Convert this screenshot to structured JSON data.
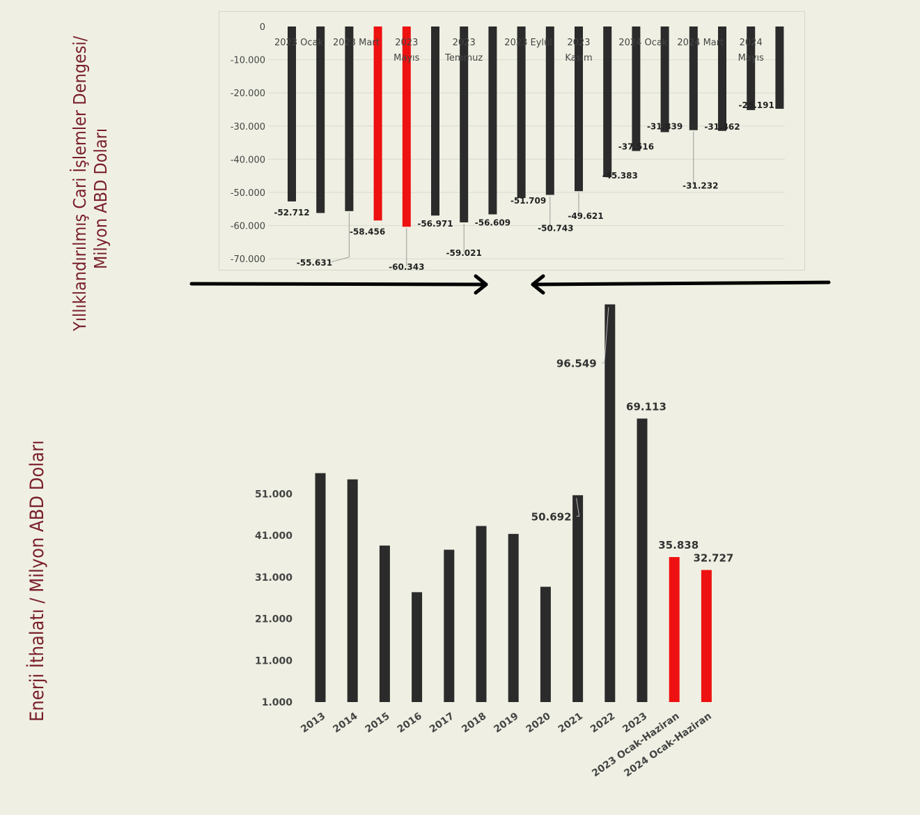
{
  "titles": {
    "top": [
      "Yıllıklandırılmış Cari İşlemler Dengesi/",
      "Milyon ABD Doları"
    ],
    "bottom": "Enerji İthalatı / Milyon ABD Doları"
  },
  "colors": {
    "dark": "#2b2b2b",
    "highlight": "#ee1111",
    "grid": "#d9dacf",
    "axis_text": "#444444"
  },
  "chart_data": [
    {
      "type": "bar",
      "title": "",
      "ylabel": "Yıllıklandırılmış Cari İşlemler Dengesi/ Milyon ABD Doları",
      "ylim": [
        -70000,
        0
      ],
      "y_ticks": [
        "0",
        "-10.000",
        "-20.000",
        "-30.000",
        "-40.000",
        "-50.000",
        "-60.000",
        "-70.000"
      ],
      "x_tick_labels": [
        {
          "text": [
            "2023 Ocak"
          ],
          "index": 0
        },
        {
          "text": [
            "2023 Mart"
          ],
          "index": 2
        },
        {
          "text": [
            "2023",
            "Mayıs"
          ],
          "index": 4
        },
        {
          "text": [
            "2023",
            "Temmuz"
          ],
          "index": 6
        },
        {
          "text": [
            "2023 Eylül"
          ],
          "index": 8
        },
        {
          "text": [
            "2023",
            "Kasım"
          ],
          "index": 10
        },
        {
          "text": [
            "2024 Ocak"
          ],
          "index": 12
        },
        {
          "text": [
            "2024 Mart"
          ],
          "index": 14
        },
        {
          "text": [
            "2024",
            "Mayıs"
          ],
          "index": 16
        }
      ],
      "values": [
        -52712,
        -56200,
        -55631,
        -58456,
        -60343,
        -56971,
        -59021,
        -56609,
        -51709,
        -50743,
        -49621,
        -45383,
        -37516,
        -31839,
        -31232,
        -31462,
        -25191,
        -24800
      ],
      "data_labels": [
        "-52.712",
        "",
        "-55.631",
        "-58.456",
        "-60.343",
        "-56.971",
        "-59.021",
        "-56.609",
        "-51.709",
        "-50.743",
        "-49.621",
        "-45.383",
        "-37.516",
        "-31.839",
        "-31.232",
        "-31.462",
        "-25.191",
        ""
      ],
      "highlight": [
        3,
        4
      ],
      "grid": true
    },
    {
      "type": "bar",
      "title": "",
      "ylabel": "Enerji İthalatı / Milyon ABD Doları",
      "ylim": [
        1000,
        96549
      ],
      "y_ticks": [
        "51.000",
        "41.000",
        "31.000",
        "21.000",
        "11.000",
        "1.000"
      ],
      "categories": [
        "2013",
        "2014",
        "2015",
        "2016",
        "2017",
        "2018",
        "2019",
        "2020",
        "2021",
        "2022",
        "2023",
        "2023 Ocak-Haziran",
        "2024 Ocak-Haziran"
      ],
      "values": [
        56000,
        54500,
        38600,
        27400,
        37600,
        43300,
        41400,
        28700,
        50692,
        96549,
        69113,
        35838,
        32727
      ],
      "data_labels": [
        "",
        "",
        "",
        "",
        "",
        "",
        "",
        "",
        "50.692",
        "96.549",
        "69.113",
        "35.838",
        "32.727"
      ],
      "highlight": [
        11,
        12
      ],
      "grid": false
    }
  ]
}
